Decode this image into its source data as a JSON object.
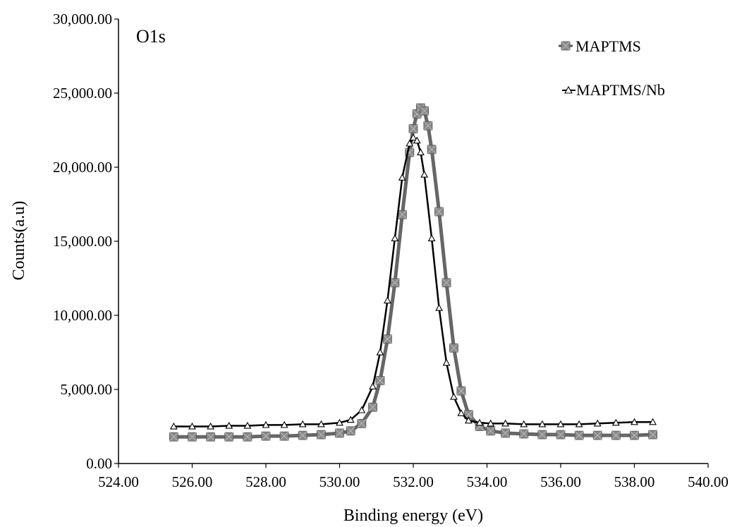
{
  "chart_data": {
    "type": "scatter",
    "annotation": "O1s",
    "xlabel": "Binding energy (eV)",
    "ylabel": "Counts(a.u)",
    "xlim": [
      524,
      540
    ],
    "ylim": [
      0,
      30000
    ],
    "x_ticks": [
      "524.00",
      "526.00",
      "528.00",
      "530.00",
      "532.00",
      "534.00",
      "536.00",
      "538.00",
      "540.00"
    ],
    "y_ticks": [
      "0.00",
      "5,000.00",
      "10,000.00",
      "15,000.00",
      "20,000.00",
      "25,000.00",
      "30,000.00"
    ],
    "legend_position": "top-right",
    "grid": false,
    "series": [
      {
        "name": "MAPTMS",
        "marker": "square-x",
        "color": "#7a7a7a",
        "x": [
          525.5,
          526.0,
          526.5,
          527.0,
          527.5,
          528.0,
          528.5,
          529.0,
          529.5,
          530.0,
          530.3,
          530.6,
          530.9,
          531.1,
          531.3,
          531.5,
          531.7,
          531.9,
          532.0,
          532.1,
          532.2,
          532.3,
          532.4,
          532.5,
          532.7,
          532.9,
          533.1,
          533.3,
          533.5,
          533.8,
          534.1,
          534.5,
          535.0,
          535.5,
          536.0,
          536.5,
          537.0,
          537.5,
          538.0,
          538.5
        ],
        "y": [
          1800,
          1800,
          1800,
          1800,
          1800,
          1850,
          1850,
          1900,
          1950,
          2050,
          2200,
          2700,
          3800,
          5600,
          8400,
          12200,
          16800,
          21000,
          22600,
          23600,
          24000,
          23800,
          22800,
          21200,
          17000,
          12200,
          7800,
          4900,
          3300,
          2500,
          2200,
          2050,
          2000,
          1950,
          1950,
          1900,
          1900,
          1900,
          1900,
          1950
        ]
      },
      {
        "name": "MAPTMS/Nb",
        "marker": "triangle-open",
        "color": "#000000",
        "x": [
          525.5,
          526.0,
          526.5,
          527.0,
          527.5,
          528.0,
          528.5,
          529.0,
          529.5,
          530.0,
          530.3,
          530.6,
          530.9,
          531.1,
          531.3,
          531.5,
          531.7,
          531.9,
          532.0,
          532.1,
          532.2,
          532.3,
          532.5,
          532.7,
          532.9,
          533.1,
          533.3,
          533.5,
          533.8,
          534.1,
          534.5,
          535.0,
          535.5,
          536.0,
          536.5,
          537.0,
          537.5,
          538.0,
          538.5
        ],
        "y": [
          2500,
          2500,
          2500,
          2550,
          2550,
          2600,
          2600,
          2650,
          2650,
          2750,
          2950,
          3600,
          5200,
          7500,
          11000,
          15200,
          19300,
          21600,
          22000,
          21800,
          21000,
          19500,
          15200,
          10500,
          6800,
          4500,
          3400,
          2900,
          2750,
          2700,
          2700,
          2650,
          2650,
          2650,
          2650,
          2700,
          2750,
          2800,
          2800
        ]
      }
    ]
  }
}
